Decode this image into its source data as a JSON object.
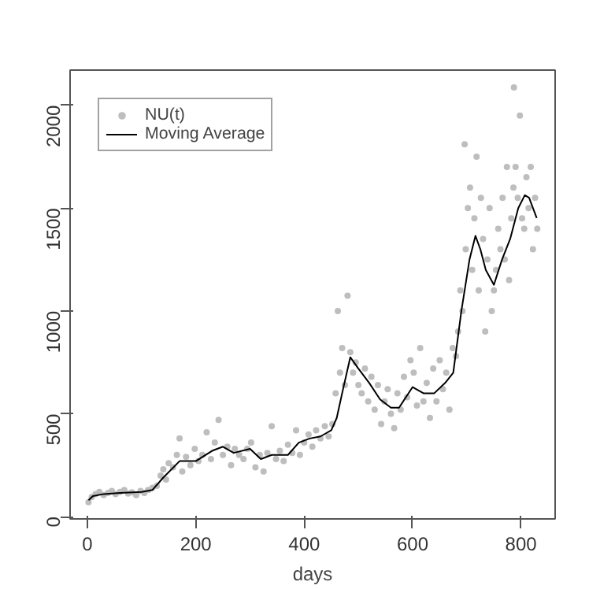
{
  "chart_data": {
    "type": "scatter",
    "xlabel": "days",
    "xlim": [
      -32,
      863
    ],
    "ylim": [
      -11,
      2171
    ],
    "xticks": [
      0,
      200,
      400,
      600,
      800
    ],
    "yticks": [
      0,
      500,
      1000,
      1500,
      2000
    ],
    "grid": false,
    "legend": "top left",
    "series": [
      {
        "name": "NU(t)",
        "color": "#bebebe",
        "marker": "circle",
        "x": [
          2,
          8,
          15,
          22,
          30,
          38,
          45,
          52,
          60,
          68,
          75,
          82,
          90,
          98,
          105,
          112,
          120,
          128,
          135,
          140,
          145,
          150,
          158,
          165,
          170,
          175,
          182,
          190,
          198,
          205,
          212,
          220,
          228,
          235,
          242,
          250,
          258,
          265,
          272,
          280,
          288,
          295,
          302,
          310,
          318,
          325,
          332,
          340,
          348,
          355,
          362,
          370,
          378,
          385,
          392,
          400,
          408,
          415,
          422,
          430,
          438,
          445,
          452,
          458,
          462,
          466,
          470,
          475,
          480,
          485,
          490,
          495,
          500,
          506,
          512,
          518,
          524,
          530,
          536,
          542,
          548,
          554,
          560,
          566,
          572,
          578,
          584,
          590,
          596,
          602,
          608,
          614,
          620,
          626,
          632,
          638,
          644,
          650,
          656,
          662,
          668,
          674,
          680,
          684,
          688,
          692,
          696,
          698,
          702,
          706,
          710,
          714,
          718,
          722,
          726,
          730,
          734,
          738,
          742,
          746,
          750,
          754,
          758,
          762,
          766,
          770,
          774,
          778,
          782,
          786,
          787,
          790,
          794,
          798,
          802,
          806,
          810,
          814,
          818,
          822,
          826,
          830
        ],
        "values": [
          70,
          95,
          110,
          120,
          105,
          115,
          125,
          110,
          120,
          130,
          112,
          118,
          105,
          125,
          115,
          130,
          140,
          150,
          200,
          230,
          180,
          260,
          240,
          300,
          380,
          220,
          290,
          250,
          330,
          270,
          300,
          410,
          280,
          360,
          470,
          300,
          340,
          250,
          330,
          300,
          280,
          330,
          360,
          240,
          300,
          220,
          310,
          440,
          280,
          320,
          270,
          350,
          310,
          420,
          300,
          360,
          400,
          340,
          420,
          380,
          440,
          390,
          450,
          600,
          1000,
          700,
          820,
          640,
          1074,
          800,
          700,
          750,
          640,
          600,
          720,
          560,
          680,
          520,
          640,
          450,
          560,
          620,
          500,
          430,
          600,
          520,
          680,
          580,
          760,
          700,
          540,
          820,
          560,
          650,
          480,
          720,
          560,
          760,
          620,
          700,
          520,
          820,
          780,
          900,
          1100,
          1000,
          1810,
          1300,
          1500,
          1600,
          1200,
          1450,
          1750,
          1100,
          1550,
          1350,
          900,
          1250,
          1500,
          1000,
          1100,
          1200,
          1400,
          1300,
          1550,
          1250,
          1700,
          1150,
          1450,
          1600,
          2087,
          1700,
          1550,
          1950,
          1450,
          1400,
          1650,
          1500,
          1700,
          1300,
          1550,
          1400
        ]
      },
      {
        "name": "Moving Average",
        "color": "#000000",
        "type": "line",
        "line_style": "solid",
        "x": [
          2,
          10,
          30,
          60,
          100,
          120,
          140,
          170,
          200,
          230,
          250,
          270,
          300,
          320,
          340,
          370,
          390,
          410,
          430,
          450,
          460,
          470,
          485,
          500,
          520,
          540,
          560,
          575,
          590,
          600,
          620,
          640,
          660,
          675,
          690,
          705,
          716,
          725,
          735,
          750,
          765,
          780,
          795,
          807,
          815,
          829
        ],
        "values": [
          80,
          100,
          110,
          115,
          120,
          130,
          190,
          270,
          270,
          320,
          340,
          310,
          330,
          280,
          300,
          300,
          360,
          380,
          390,
          420,
          480,
          600,
          775,
          720,
          650,
          570,
          530,
          530,
          590,
          630,
          600,
          600,
          650,
          700,
          1000,
          1250,
          1365,
          1300,
          1200,
          1127,
          1250,
          1350,
          1500,
          1563,
          1550,
          1452
        ]
      }
    ]
  }
}
